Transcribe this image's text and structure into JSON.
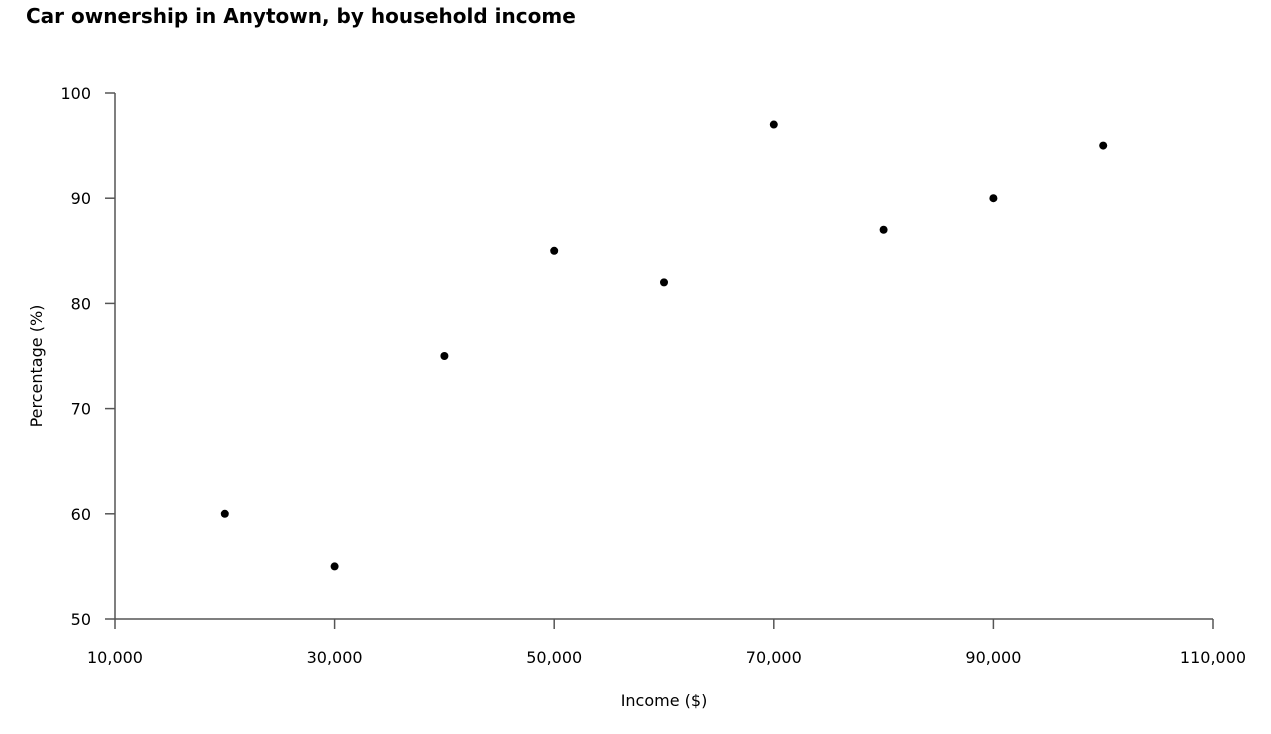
{
  "chart_data": {
    "type": "scatter",
    "title": "Car ownership in Anytown, by household income",
    "xlabel": "Income ($)",
    "ylabel": "Percentage (%)",
    "xlim": [
      10000,
      110000
    ],
    "ylim": [
      50,
      100
    ],
    "xticks": [
      10000,
      30000,
      50000,
      70000,
      90000,
      110000
    ],
    "xtick_labels": [
      "10,000",
      "30,000",
      "50,000",
      "70,000",
      "90,000",
      "110,000"
    ],
    "yticks": [
      50,
      60,
      70,
      80,
      90,
      100
    ],
    "ytick_labels": [
      "50",
      "60",
      "70",
      "80",
      "90",
      "100"
    ],
    "grid": false,
    "marker_color": "#000000",
    "points": [
      {
        "x": 20000,
        "y": 60
      },
      {
        "x": 30000,
        "y": 55
      },
      {
        "x": 40000,
        "y": 75
      },
      {
        "x": 50000,
        "y": 85
      },
      {
        "x": 60000,
        "y": 82
      },
      {
        "x": 70000,
        "y": 97
      },
      {
        "x": 80000,
        "y": 87
      },
      {
        "x": 90000,
        "y": 90
      },
      {
        "x": 100000,
        "y": 95
      }
    ]
  }
}
